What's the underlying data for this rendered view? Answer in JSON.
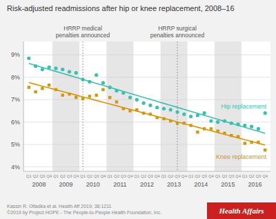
{
  "chart_data": {
    "type": "scatter",
    "title": "Risk-adjusted readmissions after hip or knee replacement, 2008–16",
    "categories": [
      "Q1",
      "Q2",
      "Q3",
      "Q4",
      "Q1",
      "Q2",
      "Q3",
      "Q4",
      "Q1",
      "Q2",
      "Q3",
      "Q4",
      "Q1",
      "Q2",
      "Q3",
      "Q4",
      "Q1",
      "Q2",
      "Q3",
      "Q4",
      "Q1",
      "Q2",
      "Q3",
      "Q4",
      "Q1",
      "Q2",
      "Q3",
      "Q4",
      "Q1",
      "Q2",
      "Q3",
      "Q4",
      "Q1",
      "Q2",
      "Q3",
      "Q4"
    ],
    "years": [
      2008,
      2009,
      2010,
      2011,
      2012,
      2013,
      2014,
      2015,
      2016
    ],
    "series": [
      {
        "name": "Hip replacement",
        "type": "scatter",
        "marker": "circle",
        "color": "#3bbfb2",
        "values": [
          8.85,
          8.5,
          8.35,
          8.45,
          8.4,
          8.35,
          8.25,
          8.2,
          7.9,
          7.8,
          8.1,
          7.75,
          7.55,
          7.4,
          7.3,
          7.1,
          7.0,
          6.85,
          6.75,
          6.65,
          6.6,
          6.55,
          6.45,
          6.35,
          6.25,
          6.3,
          6.4,
          6.05,
          6.0,
          6.05,
          5.95,
          5.9,
          5.85,
          5.8,
          5.7,
          6.4
        ]
      },
      {
        "name": "Knee replacement",
        "type": "scatter",
        "marker": "square",
        "color": "#d4960a",
        "values": [
          7.55,
          7.35,
          7.5,
          7.65,
          7.45,
          7.2,
          7.25,
          7.1,
          7.05,
          7.15,
          7.2,
          7.45,
          7.1,
          6.9,
          6.6,
          6.5,
          6.55,
          6.4,
          6.35,
          6.2,
          6.15,
          6.05,
          5.95,
          5.95,
          5.85,
          5.55,
          5.7,
          5.7,
          5.6,
          5.5,
          5.4,
          5.35,
          5.05,
          5.1,
          5.1,
          4.75
        ]
      },
      {
        "type": "line",
        "color": "#3bbfb2",
        "values": [
          8.619,
          8.53,
          8.441,
          8.352,
          8.262,
          8.173,
          8.084,
          7.995,
          7.906,
          7.816,
          7.727,
          7.638,
          7.549,
          7.46,
          7.37,
          7.281,
          7.192,
          7.103,
          7.014,
          6.925,
          6.835,
          6.746,
          6.657,
          6.568,
          6.479,
          6.389,
          6.3,
          6.211,
          6.122,
          6.033,
          5.943,
          5.854,
          5.765,
          5.676,
          5.587,
          5.498
        ]
      },
      {
        "type": "line",
        "color": "#d4960a",
        "values": [
          7.763,
          7.683,
          7.603,
          7.524,
          7.444,
          7.364,
          7.285,
          7.205,
          7.125,
          7.045,
          6.966,
          6.886,
          6.806,
          6.727,
          6.647,
          6.567,
          6.488,
          6.408,
          6.328,
          6.249,
          6.169,
          6.089,
          6.009,
          5.93,
          5.85,
          5.77,
          5.691,
          5.611,
          5.531,
          5.452,
          5.372,
          5.292,
          5.212,
          5.133,
          5.053,
          4.973
        ]
      }
    ],
    "ylim": [
      3.8,
      9.6
    ],
    "yticks": [
      {
        "value": 4,
        "label": "4%"
      },
      {
        "value": 5,
        "label": "5%"
      },
      {
        "value": 6,
        "label": "6%"
      },
      {
        "value": 7,
        "label": "7%"
      },
      {
        "value": 8,
        "label": "8%"
      },
      {
        "value": 9,
        "label": "9%"
      }
    ],
    "grid": true,
    "annotations": [
      {
        "text": "HRRP medical\npenalties announced",
        "index": 8
      },
      {
        "text": "HRRP surgical\npenalties announced",
        "index": 22
      }
    ],
    "notes": [
      "Kassin R. Ofladka et al. Health Aff 2019; 38:1211",
      "©2019 by Project HOPE - The People-to-People Health Foundation, Inc."
    ],
    "source": "Health Affairs"
  }
}
